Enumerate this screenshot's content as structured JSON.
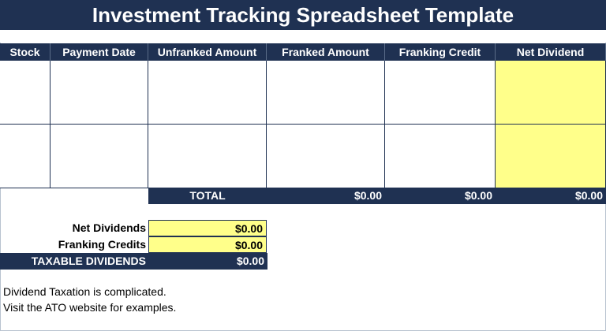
{
  "title": "Investment Tracking Spreadsheet Template",
  "columns": [
    "Stock",
    "Payment Date",
    "Unfranked Amount",
    "Franked Amount",
    "Franking Credit",
    "Net Dividend"
  ],
  "totals": {
    "label": "TOTAL",
    "franked": "$0.00",
    "franking_credit": "$0.00",
    "net_dividend": "$0.00"
  },
  "summary": {
    "net_dividends_label": "Net Dividends",
    "net_dividends_value": "$0.00",
    "franking_credits_label": "Franking Credits",
    "franking_credits_value": "$0.00",
    "taxable_label": "TAXABLE DIVIDENDS",
    "taxable_value": "$0.00"
  },
  "notes": {
    "line1": "Dividend Taxation is complicated.",
    "line2": "Visit the ATO website for examples."
  },
  "colors": {
    "header_bg": "#1f3152",
    "highlight": "#ffff8a"
  }
}
